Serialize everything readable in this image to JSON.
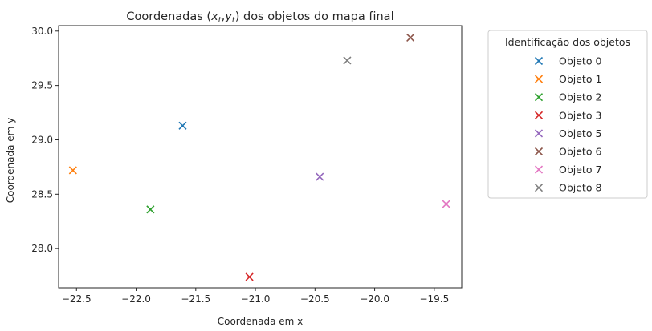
{
  "chart_data": {
    "type": "scatter",
    "title_parts": {
      "prefix": "Coordenadas (",
      "x_var": "x",
      "x_sub": "t",
      "separator": ",",
      "y_var": "y",
      "y_sub": "t",
      "suffix": ") dos objetos do mapa final"
    },
    "xlabel": "Coordenada em x",
    "ylabel": "Coordenada em y",
    "xlim": [
      -22.65,
      -19.27
    ],
    "ylim": [
      27.64,
      30.05
    ],
    "xticks": [
      -22.5,
      -22.0,
      -21.5,
      -21.0,
      -20.5,
      -20.0,
      -19.5
    ],
    "xtick_labels": [
      "−22.5",
      "−22.0",
      "−21.5",
      "−21.0",
      "−20.5",
      "−20.0",
      "−19.5"
    ],
    "yticks": [
      28.0,
      28.5,
      29.0,
      29.5,
      30.0
    ],
    "ytick_labels": [
      "28.0",
      "28.5",
      "29.0",
      "29.5",
      "30.0"
    ],
    "marker": "x",
    "grid": false,
    "legend": {
      "title": "Identificação dos objetos",
      "placement": "outside-right"
    },
    "series": [
      {
        "name": "Objeto 0",
        "color": "#1f77b4",
        "x": -21.61,
        "y": 29.13
      },
      {
        "name": "Objeto 1",
        "color": "#ff7f0e",
        "x": -22.53,
        "y": 28.72
      },
      {
        "name": "Objeto 2",
        "color": "#2ca02c",
        "x": -21.88,
        "y": 28.36
      },
      {
        "name": "Objeto 3",
        "color": "#d62728",
        "x": -21.05,
        "y": 27.74
      },
      {
        "name": "Objeto 5",
        "color": "#9467bd",
        "x": -20.46,
        "y": 28.66
      },
      {
        "name": "Objeto 6",
        "color": "#8c564b",
        "x": -19.7,
        "y": 29.94
      },
      {
        "name": "Objeto 7",
        "color": "#e377c2",
        "x": -19.4,
        "y": 28.41
      },
      {
        "name": "Objeto 8",
        "color": "#7f7f7f",
        "x": -20.23,
        "y": 29.73
      }
    ]
  }
}
